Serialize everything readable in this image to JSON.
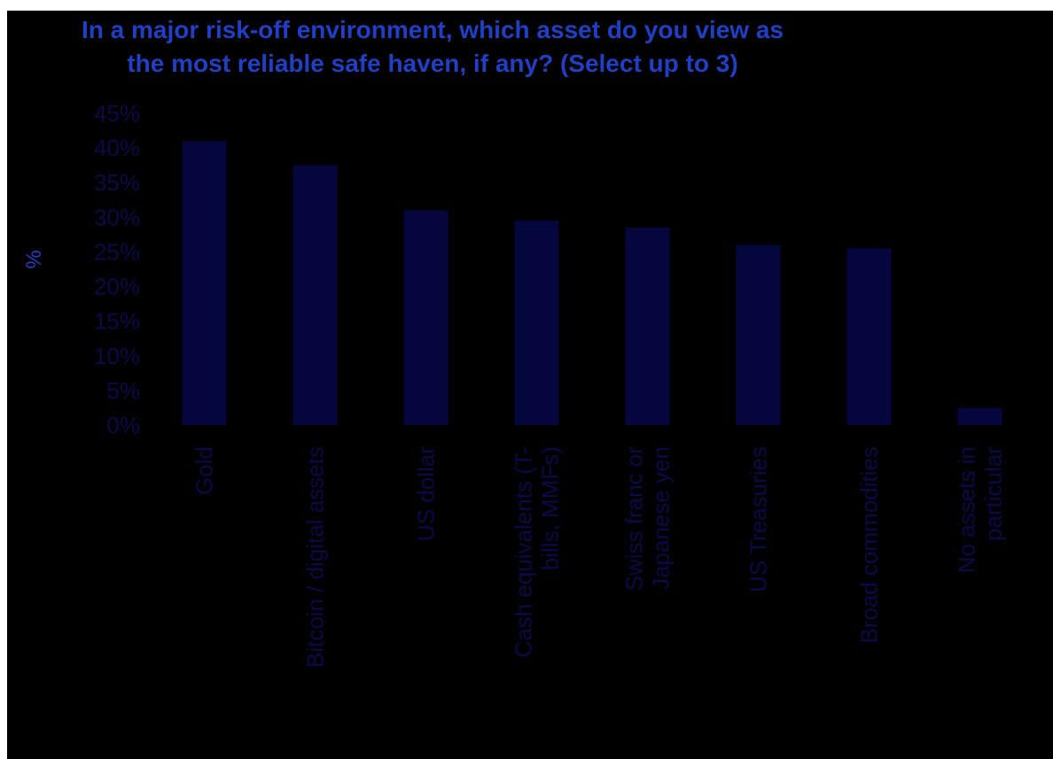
{
  "chart_data": {
    "type": "bar",
    "title_line1": "In a major risk-off environment, which asset do you view as",
    "title_line2": "the most reliable safe haven, if any? (Select up to 3)",
    "ylabel": "%",
    "xlabel": "",
    "ylim": [
      0,
      45
    ],
    "yticks": [
      "0%",
      "5%",
      "10%",
      "15%",
      "20%",
      "25%",
      "30%",
      "35%",
      "40%",
      "45%"
    ],
    "categories": [
      [
        "Gold"
      ],
      [
        "Bitcoin / digital assets"
      ],
      [
        "US dollar"
      ],
      [
        "Cash equivalents (T-",
        "bills, MMFs)"
      ],
      [
        "Swiss franc or",
        "Japanese yen"
      ],
      [
        "US Treasuries"
      ],
      [
        "Broad commodities"
      ],
      [
        "No assets in",
        "particular"
      ]
    ],
    "values": [
      41,
      37.5,
      31,
      29.5,
      28.5,
      26,
      25.5,
      2.5
    ],
    "grid": false,
    "legend": "none"
  },
  "colors": {
    "background": "#000000",
    "bar": "#06063f",
    "title": "#1f3fc7",
    "ylabel": "#1f3fc7",
    "tick_text": "#0a0a4a"
  }
}
